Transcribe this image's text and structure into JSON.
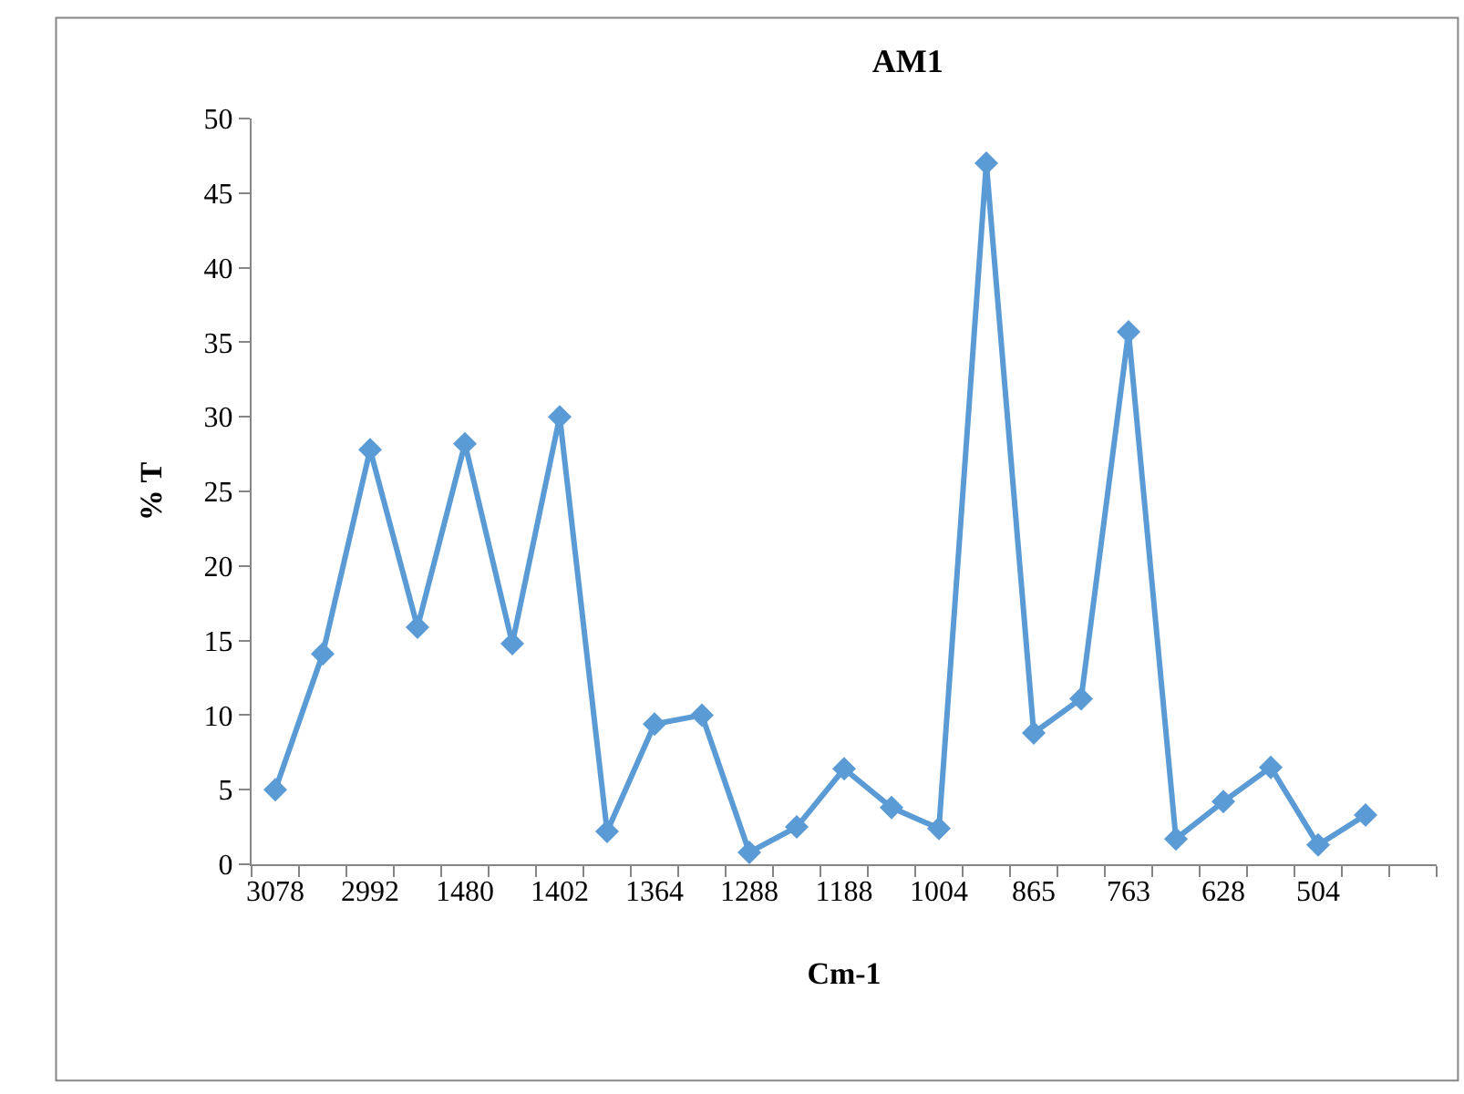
{
  "chart_data": {
    "type": "line",
    "title": "AM1",
    "xlabel": "Cm-1",
    "ylabel": "% T",
    "categories": [
      "3078",
      null,
      "2992",
      null,
      "1480",
      null,
      "1402",
      null,
      "1364",
      null,
      "1288",
      null,
      "1188",
      null,
      "1004",
      null,
      "865",
      null,
      "763",
      null,
      "628",
      null,
      "504",
      null,
      null
    ],
    "series": [
      {
        "color": "#5b9bd5",
        "values": [
          5.0,
          14.1,
          27.8,
          15.9,
          28.2,
          14.8,
          30.0,
          2.2,
          9.4,
          10.0,
          0.8,
          2.5,
          6.4,
          3.8,
          2.4,
          47.0,
          8.8,
          11.1,
          35.7,
          1.7,
          4.2,
          6.5,
          1.3,
          3.3,
          null
        ]
      }
    ],
    "ylim": [
      0,
      50
    ],
    "yticks": [
      0,
      5,
      10,
      15,
      20,
      25,
      30,
      35,
      40,
      45,
      50
    ],
    "grid": false,
    "legend": false,
    "marker": "diamond",
    "line_style": "solid"
  }
}
